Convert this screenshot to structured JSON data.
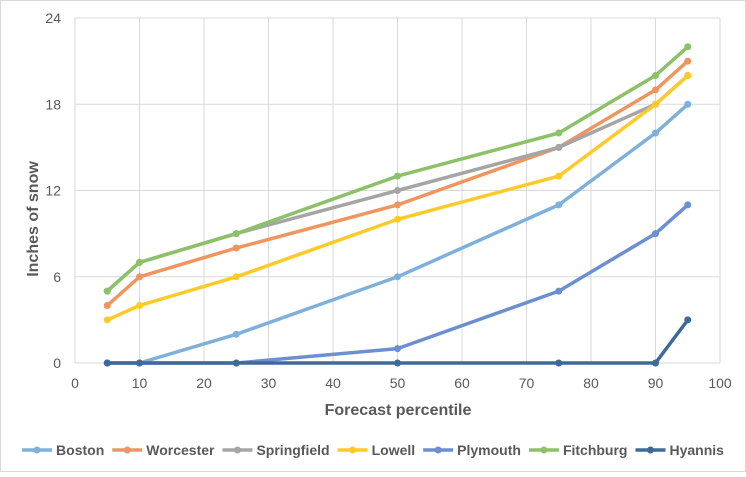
{
  "chart_data": {
    "type": "line",
    "title": "",
    "xlabel": "Forecast percentile",
    "ylabel": "Inches of snow",
    "xlim": [
      0,
      100
    ],
    "ylim": [
      0,
      24
    ],
    "xticks": [
      0,
      10,
      20,
      30,
      40,
      50,
      60,
      70,
      80,
      90,
      100
    ],
    "yticks": [
      0,
      6,
      12,
      18,
      24
    ],
    "grid": true,
    "legend_position": "bottom",
    "x": [
      5,
      10,
      25,
      50,
      75,
      90,
      95
    ],
    "series": [
      {
        "name": "Boston",
        "color": "#7eb0dc",
        "values": [
          0,
          0,
          2,
          6,
          11,
          16,
          18
        ]
      },
      {
        "name": "Worcester",
        "color": "#f0955e",
        "values": [
          4,
          6,
          8,
          11,
          15,
          19,
          21
        ]
      },
      {
        "name": "Springfield",
        "color": "#a5a5a5",
        "values": [
          5,
          7,
          9,
          12,
          15,
          18,
          20
        ]
      },
      {
        "name": "Lowell",
        "color": "#ffca28",
        "values": [
          3,
          4,
          6,
          10,
          13,
          18,
          20
        ]
      },
      {
        "name": "Plymouth",
        "color": "#6b8fd0",
        "values": [
          0,
          0,
          0,
          1,
          5,
          9,
          11
        ]
      },
      {
        "name": "Fitchburg",
        "color": "#8cc168",
        "values": [
          5,
          7,
          9,
          13,
          16,
          20,
          22
        ]
      },
      {
        "name": "Hyannis",
        "color": "#3e6a99",
        "values": [
          0,
          0,
          0,
          0,
          0,
          0,
          3
        ]
      }
    ]
  }
}
